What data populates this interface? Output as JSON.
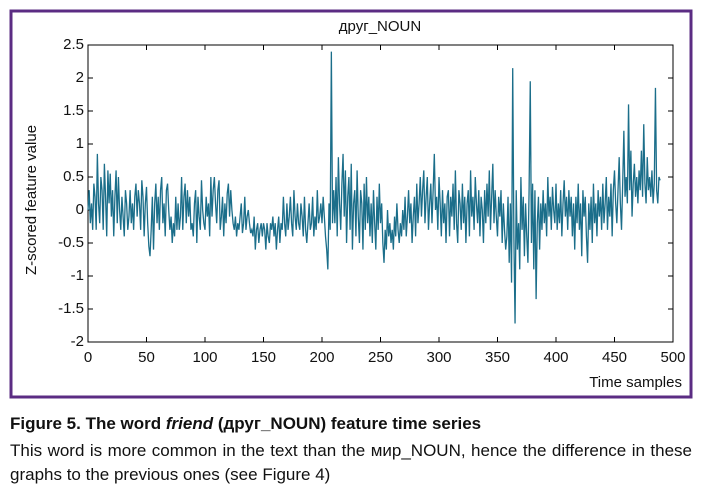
{
  "chart_data": {
    "type": "line",
    "title": "друг_NOUN",
    "xlabel": "Time samples",
    "ylabel": "Z-scored feature value",
    "color": "#1b6e8a",
    "xlim": [
      0,
      500
    ],
    "ylim": [
      -2,
      2.5
    ],
    "xticks": [
      0,
      50,
      100,
      150,
      200,
      250,
      300,
      350,
      400,
      450,
      500
    ],
    "yticks": [
      -2,
      -1.5,
      -1,
      -0.5,
      0,
      0.5,
      1,
      1.5,
      2,
      2.5
    ],
    "values": [
      0,
      0.3,
      -0.2,
      0.1,
      -0.3,
      0.4,
      0.2,
      -0.3,
      0.85,
      0.1,
      -0.2,
      0.5,
      0.3,
      -0.3,
      0.7,
      0.2,
      -0.4,
      0.6,
      0.1,
      0.55,
      -0.1,
      0.3,
      -0.4,
      0.2,
      0.6,
      -0.2,
      0.5,
      0,
      -0.3,
      0.2,
      -0.1,
      -0.4,
      0.3,
      0.1,
      -0.3,
      -0.1,
      0.3,
      -0.2,
      0.1,
      -0.3,
      0.2,
      0.4,
      -0.1,
      0.3,
      0.1,
      -0.3,
      0.45,
      0.2,
      -0.4,
      0.1,
      0.35,
      -0.2,
      -0.55,
      -0.7,
      -0.3,
      0.2,
      -0.6,
      0.1,
      0.4,
      -0.2,
      0.2,
      -0.3,
      0.3,
      0.5,
      -0.2,
      0.1,
      -0.4,
      0.3,
      0.4,
      0,
      -0.3,
      -0.1,
      -0.5,
      -0.2,
      -0.4,
      0.2,
      -0.3,
      0.1,
      -0.3,
      -0.1,
      0.5,
      -0.3,
      0.2,
      0.4,
      -0.2,
      0.3,
      -0.1,
      0.2,
      -0.3,
      -0.2,
      -0.4,
      0.1,
      0.3,
      -0.5,
      0.2,
      -0.1,
      -0.3,
      0.45,
      0,
      -0.2,
      -0.3,
      0.2,
      -0.1,
      0.1,
      -0.4,
      0.5,
      -0.1,
      0.3,
      0.5,
      0.1,
      -0.2,
      0.3,
      0.45,
      -0.3,
      -0.1,
      0.2,
      -0.4,
      0.1,
      -0.2,
      0.25,
      0.4,
      -0.1,
      0.3,
      0,
      -0.2,
      -0.3,
      -0.1,
      -0.4,
      -0.2,
      -0.3,
      -0.1,
      0.1,
      -0.35,
      -0.2,
      0.2,
      -0.3,
      -0.1,
      0,
      -0.2,
      -0.35,
      -0.3,
      -0.4,
      -0.1,
      -0.6,
      -0.3,
      -0.2,
      -0.5,
      -0.3,
      -0.2,
      -0.4,
      -0.2,
      -0.3,
      -0.6,
      -0.2,
      -0.4,
      -0.5,
      -0.2,
      -0.3,
      -0.1,
      -0.4,
      -0.2,
      -0.6,
      -0.3,
      -0.1,
      -0.5,
      -0.2,
      -0.3,
      0.2,
      -0.2,
      -0.4,
      0.1,
      -0.3,
      -0.1,
      0.2,
      -0.2,
      -0.4,
      0.3,
      -0.1,
      -0.3,
      0.1,
      -0.2,
      -0.3,
      0.1,
      -0.1,
      -0.4,
      0.2,
      -0.3,
      -0.5,
      -0.2,
      0.1,
      -0.3,
      -0.2,
      0.2,
      -0.4,
      -0.1,
      -0.3,
      0.3,
      -0.2,
      -0.1,
      0.1,
      -0.2,
      0.2,
      -0.1,
      -0.4,
      -0.6,
      -0.9,
      0.1,
      -0.3,
      2.4,
      -0.2,
      0.3,
      -0.2,
      0.5,
      -0.4,
      0.8,
      0.1,
      -0.3,
      0.4,
      0.85,
      -0.1,
      0.6,
      -0.5,
      0.2,
      0.5,
      -0.3,
      0.7,
      -0.6,
      0.1,
      0.3,
      -0.4,
      0.6,
      -0.1,
      -0.5,
      0.3,
      0.1,
      -0.6,
      0.4,
      -0.3,
      0.5,
      -0.2,
      0.2,
      -0.4,
      0.1,
      -0.5,
      0.3,
      -0.2,
      -0.6,
      0.2,
      -0.3,
      0.4,
      -0.2,
      0.1,
      -0.5,
      -0.8,
      -0.3,
      -0.6,
      0,
      -0.4,
      -0.2,
      -0.5,
      -0.3,
      -0.6,
      -0.1,
      -0.4,
      0.1,
      -0.3,
      -0.5,
      -0.2,
      -0.4,
      0,
      -0.3,
      0.2,
      -0.4,
      -0.1,
      0.3,
      -0.2,
      0.1,
      -0.5,
      -0.1,
      0.2,
      -0.4,
      0.4,
      -0.2,
      0.1,
      0.5,
      -0.1,
      0.3,
      0.6,
      -0.2,
      0.2,
      0.5,
      -0.3,
      0.1,
      0.4,
      -0.2,
      0.3,
      0.85,
      0,
      0.2,
      -0.3,
      0.5,
      0.1,
      -0.4,
      0.3,
      -0.2,
      0.1,
      -0.5,
      0.2,
      0.3,
      -0.4,
      0.2,
      -0.1,
      0.4,
      -0.3,
      0.6,
      -0.2,
      -0.5,
      0.3,
      0.1,
      -0.3,
      0.4,
      -0.2,
      0.2,
      -0.5,
      0.1,
      0.3,
      -0.4,
      0.6,
      -0.1,
      0.2,
      -0.3,
      0.5,
      0.1,
      -0.2,
      0.3,
      -0.4,
      0.2,
      0,
      -0.5,
      0.3,
      -0.2,
      0.4,
      -0.1,
      0.6,
      -0.3,
      0.2,
      0.7,
      -0.2,
      0.3,
      -0.1,
      -0.4,
      0.2,
      -0.1,
      0.3,
      -0.5,
      0.1,
      -0.3,
      -0.6,
      -0.4,
      0.2,
      -0.8,
      0.1,
      -1.1,
      2.15,
      -0.4,
      -1.72,
      0.3,
      -0.6,
      -0.2,
      -0.9,
      0.5,
      -0.3,
      0.2,
      -0.7,
      0.1,
      -0.4,
      -0.8,
      0.3,
      1.95,
      -0.5,
      0.4,
      -0.9,
      0.3,
      -1.35,
      -0.2,
      0.2,
      -0.6,
      0.1,
      -0.3,
      0.3,
      -0.2,
      0.1,
      -0.4,
      0.5,
      -0.1,
      0.2,
      -0.3,
      0.35,
      0,
      -0.2,
      0.4,
      -0.3,
      0.1,
      -0.2,
      0.3,
      -0.4,
      0.1,
      0.45,
      -0.1,
      0.2,
      -0.3,
      0.3,
      -0.1,
      0.2,
      -0.4,
      0.1,
      -0.6,
      0.2,
      -0.2,
      0.4,
      -0.3,
      0.1,
      -0.7,
      0.3,
      -0.1,
      0.2,
      -0.4,
      -0.8,
      0.1,
      -0.3,
      0.2,
      -0.5,
      0.4,
      -0.2,
      0.1,
      -0.4,
      0.3,
      -0.1,
      0.2,
      -0.3,
      0.4,
      -0.2,
      0.1,
      0.5,
      -0.3,
      0.2,
      -0.1,
      0.4,
      -0.4,
      0.3,
      0.6,
      0.1,
      -0.2,
      0.3,
      0.8,
      0.1,
      -0.3,
      0.4,
      1.2,
      0.2,
      0.5,
      0.1,
      1.6,
      0.3,
      0.9,
      -0.1,
      0.4,
      0.7,
      0.2,
      0.5,
      0.1,
      0.6,
      0.3,
      0.9,
      0.2,
      1.3,
      0.4,
      0.1,
      0.8,
      0.3,
      0.5,
      0.2,
      0.6,
      0.1,
      0.4,
      1.85,
      0.3,
      0.1,
      0.5,
      0.45
    ]
  },
  "caption": {
    "title_prefix": "Figure 5. The word ",
    "title_italic": "friend",
    "title_suffix": " (друг_NOUN) feature time series",
    "text": "This word is more common in the text than the мир_NOUN, hence the difference in these graphs to the previous ones (see Figure 4)"
  }
}
